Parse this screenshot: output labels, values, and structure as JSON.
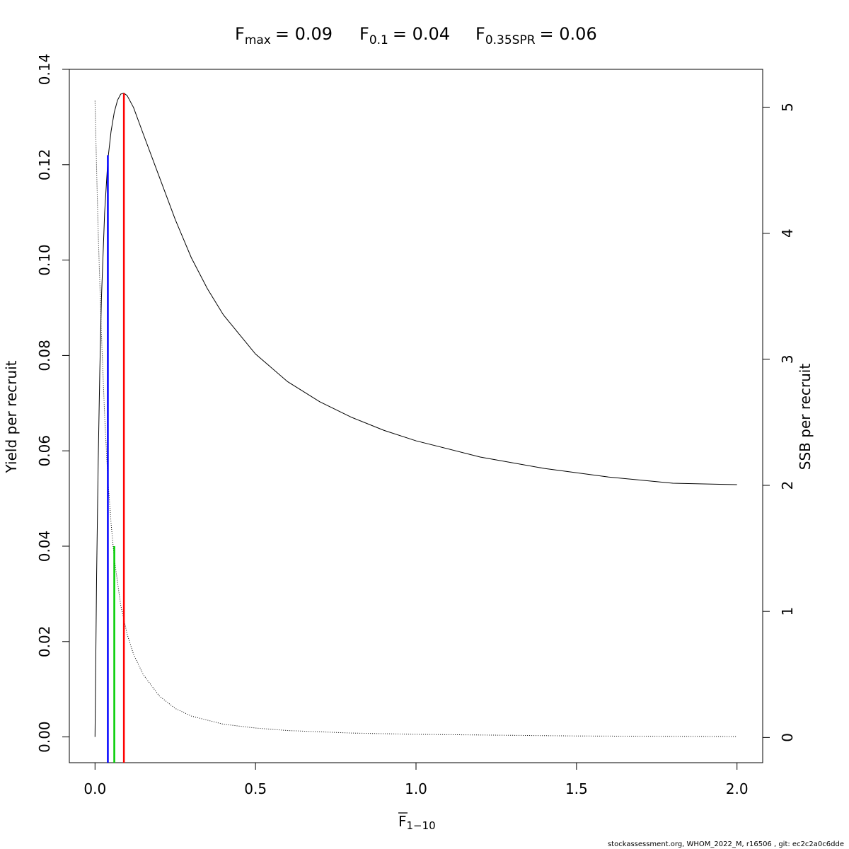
{
  "chart_data": {
    "type": "line",
    "title": {
      "fmax": {
        "base": "F",
        "sub": "max",
        "value": "= 0.09"
      },
      "f01": {
        "base": "F",
        "sub": "0.1",
        "value": "= 0.04"
      },
      "fspr": {
        "base": "F",
        "sub": "0.35SPR",
        "value": "= 0.06"
      }
    },
    "xlabel": {
      "base": "F",
      "sub": "1−10"
    },
    "ylabel": "Yield per recruit",
    "y2label": "SSB per recruit",
    "xlim": [
      -0.08,
      2.08
    ],
    "ylim": [
      -0.0054,
      0.14
    ],
    "y2lim": [
      -0.2,
      5.3
    ],
    "xticks": [
      "0.0",
      "0.5",
      "1.0",
      "1.5",
      "2.0"
    ],
    "yticks": [
      "0.00",
      "0.02",
      "0.04",
      "0.06",
      "0.08",
      "0.10",
      "0.12",
      "0.14"
    ],
    "y2ticks": [
      "0",
      "1",
      "2",
      "3",
      "4",
      "5"
    ],
    "series": [
      {
        "axis": "left",
        "style": "solid",
        "color": "#000000",
        "x": [
          0,
          0.005,
          0.01,
          0.015,
          0.02,
          0.03,
          0.04,
          0.05,
          0.06,
          0.07,
          0.08,
          0.09,
          0.1,
          0.12,
          0.15,
          0.2,
          0.25,
          0.3,
          0.35,
          0.4,
          0.5,
          0.6,
          0.7,
          0.8,
          0.9,
          1.0,
          1.2,
          1.4,
          1.6,
          1.8,
          2.0
        ],
        "y": [
          0.0,
          0.034,
          0.058,
          0.077,
          0.092,
          0.11,
          0.121,
          0.127,
          0.131,
          0.1335,
          0.1348,
          0.135,
          0.1345,
          0.132,
          0.1265,
          0.1175,
          0.1085,
          0.1005,
          0.094,
          0.0885,
          0.0803,
          0.0745,
          0.0703,
          0.067,
          0.0643,
          0.0621,
          0.0587,
          0.0563,
          0.0545,
          0.0532,
          0.0529
        ]
      },
      {
        "axis": "right",
        "style": "dotted",
        "color": "#000000",
        "x": [
          0,
          0.005,
          0.01,
          0.02,
          0.03,
          0.04,
          0.05,
          0.06,
          0.08,
          0.1,
          0.12,
          0.15,
          0.2,
          0.25,
          0.3,
          0.4,
          0.5,
          0.6,
          0.8,
          1.0,
          1.5,
          2.0
        ],
        "y": [
          5.05,
          4.5,
          4.0,
          3.2,
          2.55,
          2.05,
          1.7,
          1.42,
          1.05,
          0.82,
          0.66,
          0.5,
          0.33,
          0.23,
          0.17,
          0.105,
          0.075,
          0.055,
          0.035,
          0.025,
          0.012,
          0.007
        ]
      }
    ],
    "reference_lines": [
      {
        "name": "F0.1",
        "x": 0.04,
        "y": 0.122,
        "color": "#0000ff"
      },
      {
        "name": "F0.35SPR",
        "x": 0.06,
        "y": 0.04,
        "color": "#00cd00"
      },
      {
        "name": "Fmax",
        "x": 0.09,
        "y": 0.135,
        "color": "#ff0000"
      }
    ]
  },
  "footer": "stockassessment.org, WHOM_2022_M, r16506 , git: ec2c2a0c6dde"
}
